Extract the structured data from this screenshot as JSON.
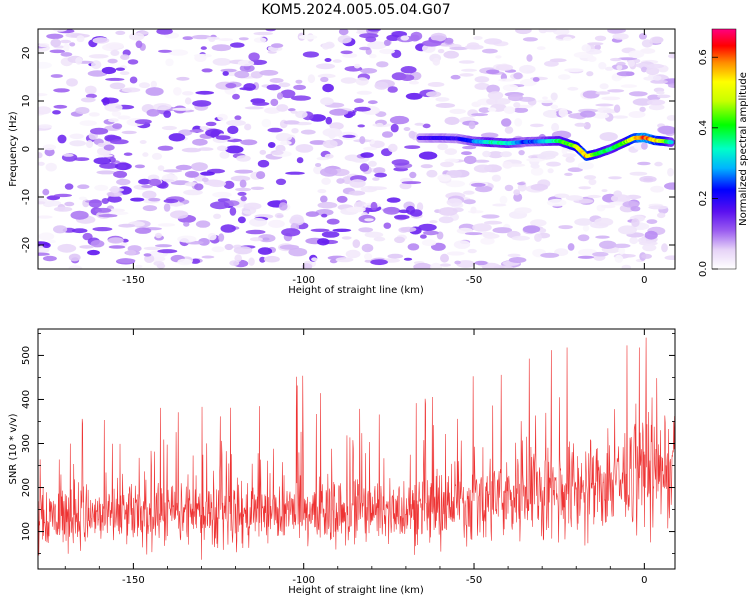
{
  "title": "KOM5.2024.005.05.04.G07",
  "chart_data": [
    {
      "type": "heatmap",
      "xlabel": "Height of straight line (km)",
      "ylabel": "Frequency (Hz)",
      "xlim": [
        -178,
        9
      ],
      "ylim": [
        -25,
        25
      ],
      "xticks": [
        -150,
        -100,
        -50,
        0
      ],
      "yticks": [
        -20,
        -10,
        0,
        10,
        20
      ],
      "ytick_labels": [
        "-20",
        "-10",
        "0",
        "10",
        "20"
      ],
      "colorbar": {
        "label": "Normalized spectral amplitude",
        "range": [
          0,
          0.68
        ],
        "ticks": [
          0.0,
          0.2,
          0.4,
          0.6
        ],
        "tick_labels": [
          "0.0",
          "0.2",
          "0.4",
          "0.6"
        ],
        "colormap": "rainbow (white-purple-blue-cyan-green-yellow-orange-red-magenta)"
      },
      "ridge": {
        "x": [
          -66,
          -60,
          -55,
          -50,
          -45,
          -40,
          -35,
          -30,
          -25,
          -20,
          -17,
          -14,
          -10,
          -6,
          -3,
          0,
          3,
          6,
          8
        ],
        "y": [
          2.3,
          2.3,
          2.2,
          1.6,
          1.4,
          1.2,
          1.5,
          1.6,
          1.7,
          0.5,
          -1.5,
          -1.0,
          0.0,
          1.3,
          2.3,
          2.4,
          1.8,
          1.6,
          1.4
        ],
        "amplitude": [
          0.18,
          0.22,
          0.2,
          0.28,
          0.38,
          0.36,
          0.25,
          0.3,
          0.42,
          0.5,
          0.62,
          0.45,
          0.4,
          0.45,
          0.6,
          0.68,
          0.6,
          0.5,
          0.3
        ]
      },
      "background_amplitude_range": [
        0.0,
        0.16
      ]
    },
    {
      "type": "line",
      "xlabel": "Height of straight line (km)",
      "ylabel": "SNR (10 * v/v)",
      "xlim": [
        -178,
        9
      ],
      "ylim": [
        15,
        560
      ],
      "xticks": [
        -150,
        -100,
        -50,
        0
      ],
      "yticks": [
        100,
        200,
        300,
        400,
        500
      ],
      "ytick_labels": [
        "100",
        "200",
        "300",
        "400",
        "500"
      ],
      "series": [
        {
          "color": "#ee3333",
          "n_samples": 1500,
          "envelope": {
            "x": [
              -178,
              -150,
              -120,
              -100,
              -80,
              -60,
              -50,
              -40,
              -30,
              -20,
              -10,
              0,
              9
            ],
            "mean": [
              135,
              135,
              140,
              140,
              145,
              150,
              165,
              180,
              190,
              200,
              215,
              230,
              240
            ],
            "max": [
              350,
              395,
              390,
              460,
              385,
              420,
              460,
              470,
              510,
              550,
              560,
              545,
              520
            ]
          }
        }
      ]
    }
  ]
}
